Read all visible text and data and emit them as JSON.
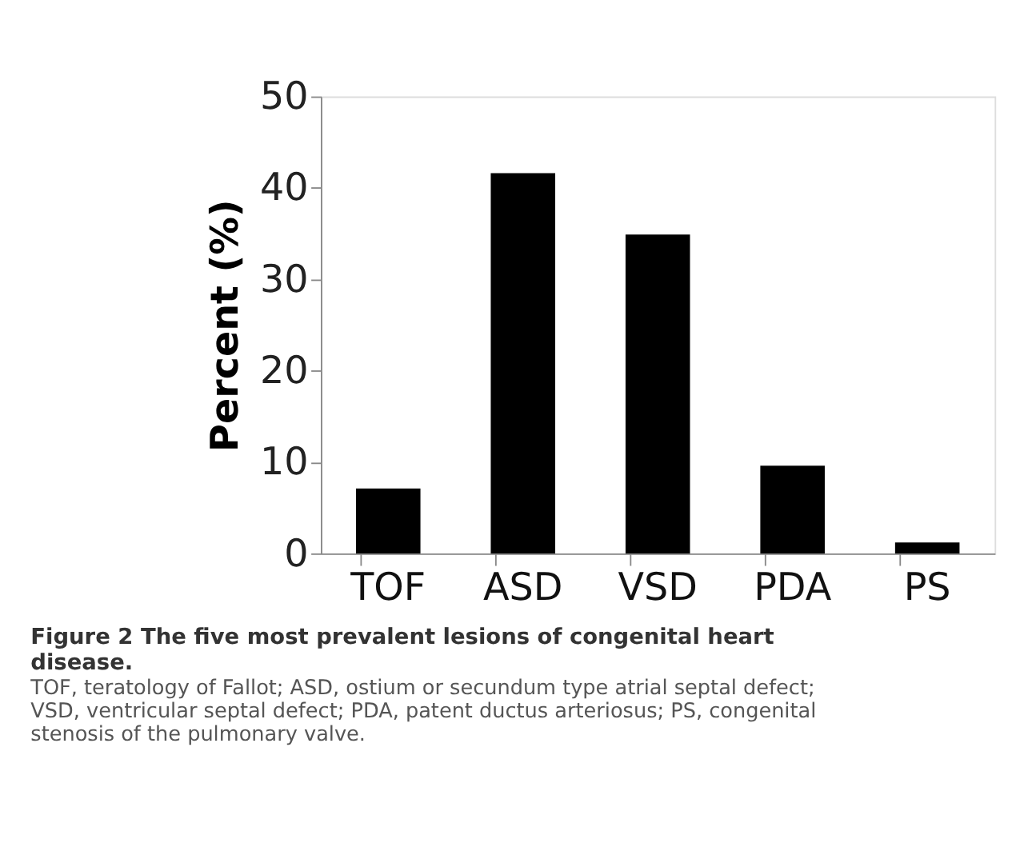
{
  "chart_data": {
    "type": "bar",
    "title": "Figure 2 The five most prevalent lesions of congenital heart disease.",
    "subtitle": "TOF, teratology of Fallot; ASD, ostium or secundum type atrial septal defect; VSD, ventricular septal defect; PDA, patent ductus arteriosus; PS, congenital stenosis of the pulmonary valve.",
    "ylabel": "Percent (%)",
    "categories": [
      "TOF",
      "ASD",
      "VSD",
      "PDA",
      "PS"
    ],
    "values": [
      7.1,
      41.6,
      34.9,
      9.6,
      1.2
    ],
    "color": "#000000",
    "ylim": [
      0,
      50
    ],
    "yticks": [
      0,
      10,
      20,
      30,
      40,
      50
    ],
    "grid": false
  }
}
